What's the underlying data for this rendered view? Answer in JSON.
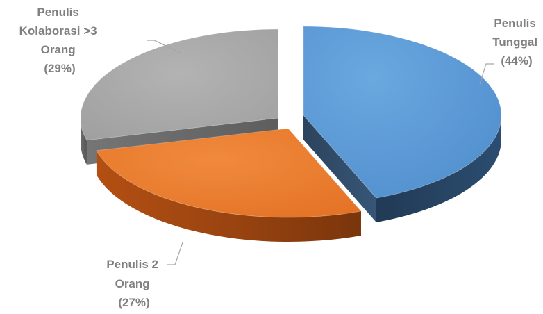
{
  "chart_data": {
    "type": "pie",
    "style": "3d-exploded",
    "title": "",
    "slices": [
      {
        "label_lines": [
          "Penulis",
          "Tunggal",
          "(44%)"
        ],
        "value": 44,
        "color": "#5b9bd5"
      },
      {
        "label_lines": [
          "Penulis 2",
          "Orang",
          "(27%)"
        ],
        "value": 27,
        "color": "#ed7d31"
      },
      {
        "label_lines": [
          "Penulis",
          "Kolaborasi >3",
          "Orang",
          "(29%)"
        ],
        "value": 29,
        "color": "#a5a5a5"
      }
    ]
  }
}
